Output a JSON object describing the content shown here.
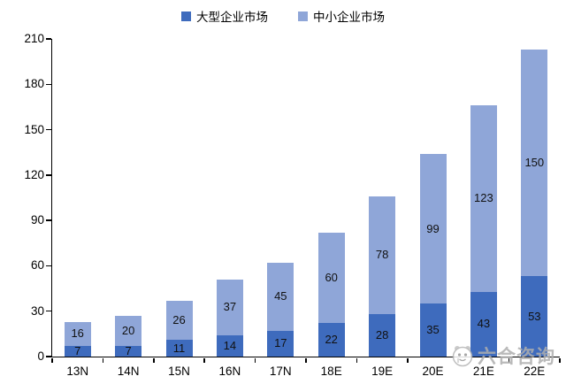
{
  "chart_data": {
    "type": "bar",
    "stacked": true,
    "title": "",
    "xlabel": "",
    "ylabel": "",
    "categories": [
      "13N",
      "14N",
      "15N",
      "16N",
      "17N",
      "18E",
      "19E",
      "20E",
      "21E",
      "22E"
    ],
    "series": [
      {
        "name": "大型企业市场",
        "color": "#3e6bbd",
        "values": [
          7,
          7,
          11,
          14,
          17,
          22,
          28,
          35,
          43,
          53
        ]
      },
      {
        "name": "中小企业市场",
        "color": "#8fa6d8",
        "values": [
          16,
          20,
          26,
          37,
          45,
          60,
          78,
          99,
          123,
          150
        ]
      }
    ],
    "ylim": [
      0,
      210
    ],
    "y_ticks": [
      0,
      30,
      60,
      90,
      120,
      150,
      180,
      210
    ],
    "grid": false,
    "legend_position": "top",
    "axis_color": "#000000",
    "value_label_color": "#111111"
  },
  "watermark": {
    "text": "六合咨询",
    "color": "#aeaeae"
  }
}
